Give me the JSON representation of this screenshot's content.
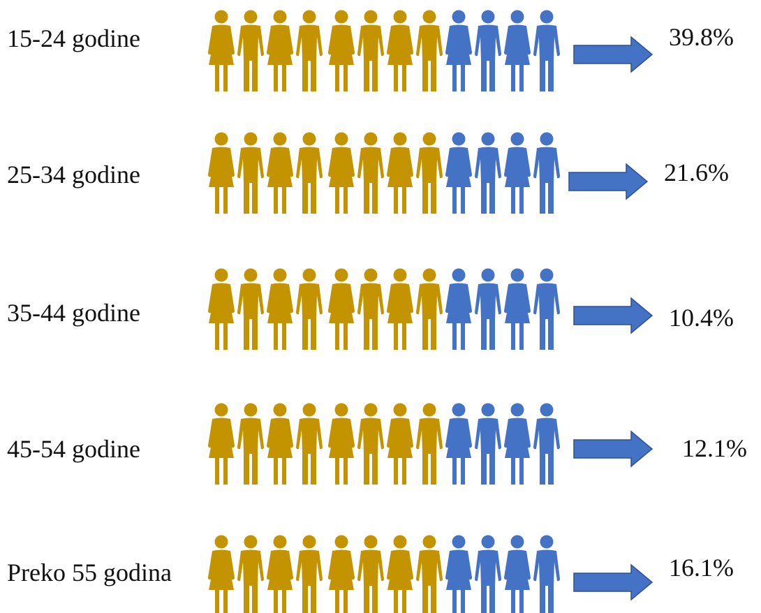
{
  "chart_data": {
    "type": "pictograph",
    "colors": {
      "primary": "#C49400",
      "secondary": "#4472C4",
      "arrow": "#4472C4"
    },
    "icons_per_row": 12,
    "icon_pattern": [
      "female",
      "male",
      "female",
      "male",
      "female",
      "male",
      "female",
      "male",
      "female",
      "male",
      "female",
      "male"
    ],
    "icon_name": "person-icon",
    "rows": [
      {
        "category": "15-24 godine",
        "value": 39.8,
        "label": "39.8%",
        "primary_icons": 8,
        "secondary_icons": 4
      },
      {
        "category": "25-34 godine",
        "value": 21.6,
        "label": "21.6%",
        "primary_icons": 8,
        "secondary_icons": 4
      },
      {
        "category": "35-44 godine",
        "value": 10.4,
        "label": "10.4%",
        "primary_icons": 8,
        "secondary_icons": 4
      },
      {
        "category": "45-54 godine",
        "value": 12.1,
        "label": "12.1%",
        "primary_icons": 8,
        "secondary_icons": 4
      },
      {
        "category": "Preko 55 godina",
        "value": 16.1,
        "label": "16.1%",
        "primary_icons": 8,
        "secondary_icons": 4
      }
    ]
  }
}
